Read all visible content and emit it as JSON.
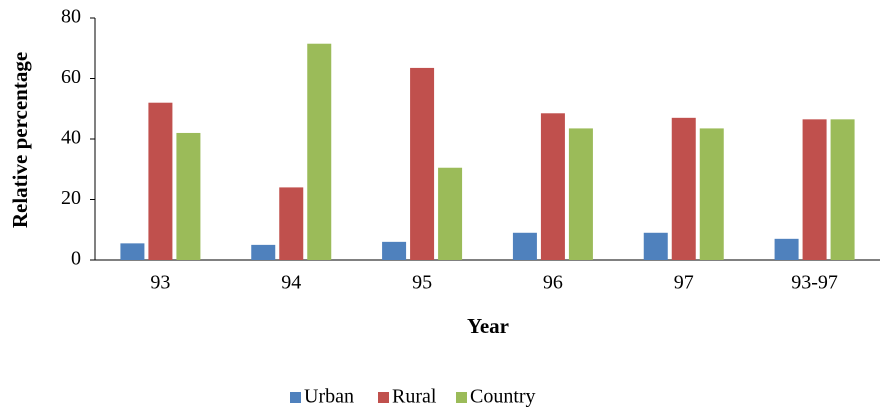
{
  "chart_data": {
    "type": "bar",
    "x_label": "Year",
    "y_label": "Relative  percentage",
    "categories": [
      "93",
      "94",
      "95",
      "96",
      "97",
      "93-97"
    ],
    "series": [
      {
        "name": "Urban",
        "color": "#4f81bd",
        "values": [
          5.5,
          5,
          6,
          9,
          9,
          7
        ]
      },
      {
        "name": "Rural",
        "color": "#c0504d",
        "values": [
          52,
          24,
          63.5,
          48.5,
          47,
          46.5
        ]
      },
      {
        "name": "Country",
        "color": "#9bbb59",
        "values": [
          42,
          71.5,
          30.5,
          43.5,
          43.5,
          46.5
        ]
      }
    ],
    "ylim": [
      0,
      80
    ],
    "yticks": [
      0,
      20,
      40,
      60,
      80
    ],
    "grid": false,
    "legend": "bottom"
  }
}
